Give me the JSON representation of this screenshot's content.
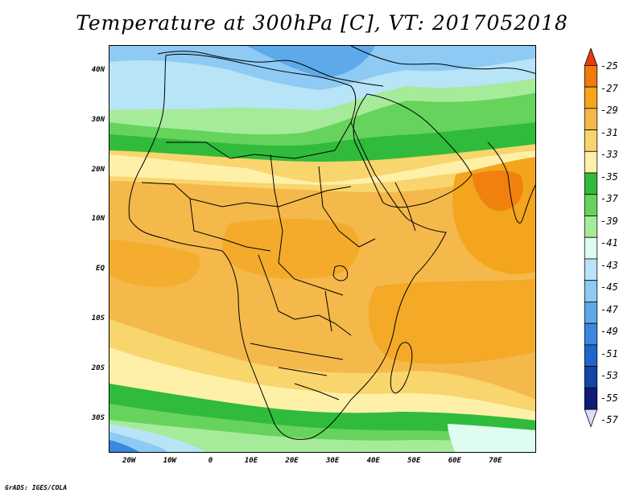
{
  "title": "Temperature at 300hPa [C], VT: 2017052018",
  "footer": "GrADS: IGES/COLA",
  "map": {
    "region": "Africa, Arabian Peninsula and western Indian Ocean",
    "lon_range": [
      -25,
      80
    ],
    "lat_range": [
      -37,
      45
    ],
    "lat_ticks": [
      {
        "label": "40N",
        "value": 40
      },
      {
        "label": "30N",
        "value": 30
      },
      {
        "label": "20N",
        "value": 20
      },
      {
        "label": "10N",
        "value": 10
      },
      {
        "label": "EQ",
        "value": 0
      },
      {
        "label": "10S",
        "value": -10
      },
      {
        "label": "20S",
        "value": -20
      },
      {
        "label": "30S",
        "value": -30
      }
    ],
    "lon_ticks": [
      {
        "label": "20W",
        "value": -20
      },
      {
        "label": "10W",
        "value": -10
      },
      {
        "label": "0",
        "value": 0
      },
      {
        "label": "10E",
        "value": 10
      },
      {
        "label": "20E",
        "value": 20
      },
      {
        "label": "30E",
        "value": 30
      },
      {
        "label": "40E",
        "value": 40
      },
      {
        "label": "50E",
        "value": 50
      },
      {
        "label": "60E",
        "value": 60
      },
      {
        "label": "70E",
        "value": 70
      }
    ]
  },
  "colorbar": {
    "levels": [
      {
        "value": -25,
        "label": "-25",
        "color": "#e33c10"
      },
      {
        "value": -27,
        "label": "-27",
        "color": "#f07a0c"
      },
      {
        "value": -29,
        "label": "-29",
        "color": "#f4a51e"
      },
      {
        "value": -31,
        "label": "-31",
        "color": "#f5b84a"
      },
      {
        "value": -33,
        "label": "-33",
        "color": "#f9d56d"
      },
      {
        "value": -35,
        "label": "-35",
        "color": "#fff0a8"
      },
      {
        "value": -37,
        "label": "-37",
        "color": "#31bb3c"
      },
      {
        "value": -39,
        "label": "-39",
        "color": "#66d45c"
      },
      {
        "value": -41,
        "label": "-41",
        "color": "#a6eb9a"
      },
      {
        "value": -43,
        "label": "-43",
        "color": "#dffcf0"
      },
      {
        "value": -45,
        "label": "-45",
        "color": "#b8e4f7"
      },
      {
        "value": -47,
        "label": "-47",
        "color": "#8ecaf3"
      },
      {
        "value": -49,
        "label": "-49",
        "color": "#5ea9ea"
      },
      {
        "value": -51,
        "label": "-51",
        "color": "#3a87e0"
      },
      {
        "value": -53,
        "label": "-53",
        "color": "#2065cc"
      },
      {
        "value": -55,
        "label": "-55",
        "color": "#1444a6"
      },
      {
        "value": -57,
        "label": "-57",
        "color": "#0e1c78"
      }
    ],
    "over_color": "#e33c10",
    "under_color": "#dcdcf6"
  }
}
